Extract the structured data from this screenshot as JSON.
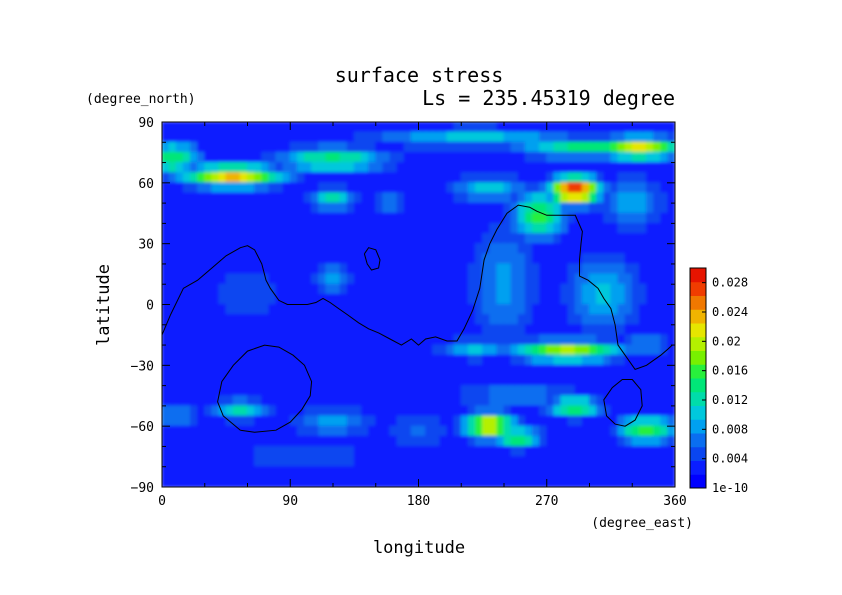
{
  "chart_data": {
    "type": "heatmap",
    "title": "surface stress",
    "subtitle": "Ls = 235.45319 degree",
    "xlabel": "longitude",
    "ylabel": "latitude",
    "x_units": "(degree_east)",
    "y_units": "(degree_north)",
    "xlim": [
      0,
      360
    ],
    "ylim": [
      -90,
      90
    ],
    "x_ticks": [
      0,
      90,
      180,
      270,
      360
    ],
    "y_ticks": [
      90,
      60,
      30,
      0,
      -30,
      -60,
      -90
    ],
    "colorbar": {
      "min": 0,
      "max": 0.03,
      "tick_values": [
        0,
        0.004,
        0.008,
        0.012,
        0.016,
        0.02,
        0.024,
        0.028
      ],
      "tick_labels": [
        "1e-10",
        "0.004",
        "0.008",
        "0.012",
        "0.016",
        "0.02",
        "0.024",
        "0.028"
      ],
      "colors": [
        "#0000ff",
        "#0a1eff",
        "#0a46f0",
        "#0a6ef0",
        "#00a0f0",
        "#00c8dc",
        "#00dcaa",
        "#00e678",
        "#28f03c",
        "#78f000",
        "#b4f000",
        "#e6e600",
        "#f0b400",
        "#f07800",
        "#f03c00",
        "#e61400"
      ]
    },
    "background_level": 0.003,
    "hotspots": [
      {
        "lon": 50,
        "lat": 63,
        "value": 0.023,
        "lon_spread": 26,
        "lat_spread": 4
      },
      {
        "lon": 8,
        "lat": 72,
        "value": 0.015,
        "lon_spread": 14,
        "lat_spread": 6
      },
      {
        "lon": 120,
        "lat": 71,
        "value": 0.014,
        "lon_spread": 30,
        "lat_spread": 5
      },
      {
        "lon": 220,
        "lat": 82,
        "value": 0.01,
        "lon_spread": 60,
        "lat_spread": 4
      },
      {
        "lon": 300,
        "lat": 77,
        "value": 0.014,
        "lon_spread": 40,
        "lat_spread": 4
      },
      {
        "lon": 335,
        "lat": 77,
        "value": 0.022,
        "lon_spread": 22,
        "lat_spread": 4
      },
      {
        "lon": 290,
        "lat": 56,
        "value": 0.029,
        "lon_spread": 13,
        "lat_spread": 5
      },
      {
        "lon": 265,
        "lat": 44,
        "value": 0.016,
        "lon_spread": 14,
        "lat_spread": 9
      },
      {
        "lon": 230,
        "lat": 57,
        "value": 0.01,
        "lon_spread": 22,
        "lat_spread": 5
      },
      {
        "lon": 120,
        "lat": 52,
        "value": 0.013,
        "lon_spread": 12,
        "lat_spread": 4
      },
      {
        "lon": 160,
        "lat": 50,
        "value": 0.009,
        "lon_spread": 10,
        "lat_spread": 4
      },
      {
        "lon": 330,
        "lat": 50,
        "value": 0.009,
        "lon_spread": 18,
        "lat_spread": 10
      },
      {
        "lon": 310,
        "lat": 5,
        "value": 0.01,
        "lon_spread": 20,
        "lat_spread": 16
      },
      {
        "lon": 240,
        "lat": 10,
        "value": 0.008,
        "lon_spread": 20,
        "lat_spread": 25
      },
      {
        "lon": 120,
        "lat": 13,
        "value": 0.009,
        "lon_spread": 10,
        "lat_spread": 6
      },
      {
        "lon": 60,
        "lat": 5,
        "value": 0.005,
        "lon_spread": 30,
        "lat_spread": 12
      },
      {
        "lon": 285,
        "lat": -23,
        "value": 0.019,
        "lon_spread": 30,
        "lat_spread": 4
      },
      {
        "lon": 220,
        "lat": -22,
        "value": 0.01,
        "lon_spread": 20,
        "lat_spread": 4
      },
      {
        "lon": 340,
        "lat": -20,
        "value": 0.008,
        "lon_spread": 15,
        "lat_spread": 4
      },
      {
        "lon": 230,
        "lat": -60,
        "value": 0.022,
        "lon_spread": 14,
        "lat_spread": 5
      },
      {
        "lon": 250,
        "lat": -66,
        "value": 0.016,
        "lon_spread": 12,
        "lat_spread": 4
      },
      {
        "lon": 290,
        "lat": -51,
        "value": 0.016,
        "lon_spread": 14,
        "lat_spread": 4
      },
      {
        "lon": 340,
        "lat": -62,
        "value": 0.017,
        "lon_spread": 15,
        "lat_spread": 5
      },
      {
        "lon": 55,
        "lat": -52,
        "value": 0.012,
        "lon_spread": 15,
        "lat_spread": 4
      },
      {
        "lon": 10,
        "lat": -55,
        "value": 0.008,
        "lon_spread": 12,
        "lat_spread": 6
      },
      {
        "lon": 120,
        "lat": -58,
        "value": 0.008,
        "lon_spread": 25,
        "lat_spread": 6
      },
      {
        "lon": 180,
        "lat": -62,
        "value": 0.006,
        "lon_spread": 20,
        "lat_spread": 8
      },
      {
        "lon": 100,
        "lat": -75,
        "value": 0.006,
        "lon_spread": 50,
        "lat_spread": 4
      },
      {
        "lon": 250,
        "lat": -45,
        "value": 0.007,
        "lon_spread": 40,
        "lat_spread": 6
      }
    ],
    "contours": [
      {
        "name": "continent-outline",
        "points": [
          [
            0,
            -15
          ],
          [
            6,
            -5
          ],
          [
            15,
            8
          ],
          [
            25,
            12
          ],
          [
            35,
            18
          ],
          [
            45,
            24
          ],
          [
            55,
            28
          ],
          [
            60,
            29
          ],
          [
            65,
            27
          ],
          [
            70,
            20
          ],
          [
            73,
            12
          ],
          [
            76,
            8
          ],
          [
            82,
            2
          ],
          [
            88,
            0
          ],
          [
            95,
            0
          ],
          [
            102,
            0
          ],
          [
            108,
            1
          ],
          [
            113,
            3
          ],
          [
            118,
            1
          ],
          [
            124,
            -2
          ],
          [
            130,
            -5
          ],
          [
            138,
            -9
          ],
          [
            145,
            -12
          ],
          [
            152,
            -14
          ],
          [
            160,
            -17
          ],
          [
            168,
            -20
          ],
          [
            175,
            -17
          ],
          [
            180,
            -20
          ],
          [
            185,
            -17
          ],
          [
            192,
            -16
          ],
          [
            200,
            -18
          ],
          [
            207,
            -18
          ],
          [
            212,
            -12
          ],
          [
            218,
            -3
          ],
          [
            223,
            8
          ],
          [
            226,
            22
          ],
          [
            230,
            30
          ],
          [
            235,
            37
          ],
          [
            242,
            45
          ],
          [
            250,
            49
          ],
          [
            258,
            48
          ],
          [
            263,
            46
          ],
          [
            270,
            44
          ],
          [
            280,
            44
          ],
          [
            290,
            44
          ],
          [
            295,
            36
          ],
          [
            294,
            30
          ],
          [
            293,
            22
          ],
          [
            293,
            14
          ],
          [
            299,
            12
          ],
          [
            306,
            8
          ],
          [
            310,
            3
          ],
          [
            315,
            -2
          ],
          [
            318,
            -10
          ],
          [
            320,
            -20
          ],
          [
            325,
            -25
          ],
          [
            332,
            -32
          ],
          [
            340,
            -30
          ],
          [
            350,
            -25
          ],
          [
            355,
            -22
          ],
          [
            358,
            -20
          ]
        ]
      },
      {
        "name": "northern-island",
        "points": [
          [
            142,
            25
          ],
          [
            145,
            28
          ],
          [
            150,
            27
          ],
          [
            153,
            22
          ],
          [
            152,
            18
          ],
          [
            147,
            17
          ],
          [
            144,
            20
          ],
          [
            142,
            25
          ]
        ]
      },
      {
        "name": "western-basin",
        "points": [
          [
            55,
            -62
          ],
          [
            65,
            -63
          ],
          [
            80,
            -62
          ],
          [
            90,
            -58
          ],
          [
            98,
            -52
          ],
          [
            104,
            -45
          ],
          [
            105,
            -38
          ],
          [
            100,
            -30
          ],
          [
            92,
            -25
          ],
          [
            82,
            -21
          ],
          [
            72,
            -20
          ],
          [
            60,
            -23
          ],
          [
            50,
            -30
          ],
          [
            42,
            -38
          ],
          [
            39,
            -48
          ],
          [
            43,
            -55
          ],
          [
            55,
            -62
          ]
        ]
      },
      {
        "name": "eastern-basin",
        "points": [
          [
            312,
            -55
          ],
          [
            318,
            -59
          ],
          [
            325,
            -60
          ],
          [
            332,
            -57
          ],
          [
            337,
            -50
          ],
          [
            336,
            -42
          ],
          [
            330,
            -37
          ],
          [
            323,
            -37
          ],
          [
            316,
            -41
          ],
          [
            310,
            -47
          ],
          [
            312,
            -55
          ]
        ]
      }
    ]
  }
}
